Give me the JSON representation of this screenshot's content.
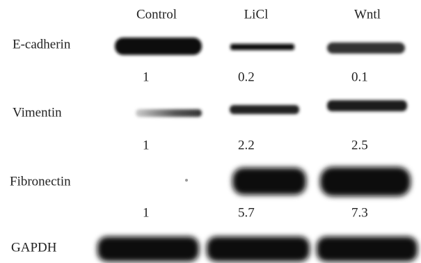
{
  "columns": [
    "Control",
    "LiCl",
    "Wntl"
  ],
  "rows": [
    {
      "label": "E-cadherin",
      "values": [
        "1",
        "0.2",
        "0.1"
      ]
    },
    {
      "label": "Vimentin",
      "values": [
        "1",
        "2.2",
        "2.5"
      ]
    },
    {
      "label": "Fibronectin",
      "values": [
        "1",
        "5.7",
        "7.3"
      ]
    },
    {
      "label": "GAPDH"
    }
  ]
}
